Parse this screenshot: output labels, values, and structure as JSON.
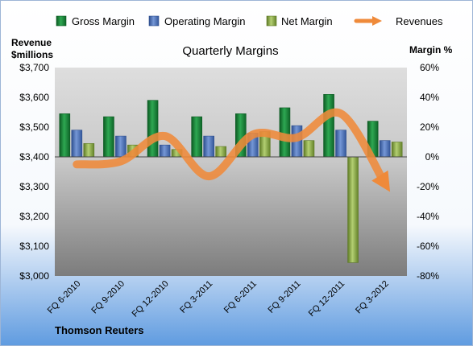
{
  "chart_data": {
    "type": "bar",
    "title": "Quarterly Margins",
    "company": "Thomson Reuters",
    "left_axis": {
      "label_line1": "Revenue",
      "label_line2": "$millions",
      "min": 3000,
      "max": 3700,
      "step": 100,
      "tick_labels": [
        "$3,000",
        "$3,100",
        "$3,200",
        "$3,300",
        "$3,400",
        "$3,500",
        "$3,600",
        "$3,700"
      ]
    },
    "right_axis": {
      "label": "Margin %",
      "min": -80,
      "max": 60,
      "step": 20,
      "tick_labels": [
        "-80%",
        "-60%",
        "-40%",
        "-20%",
        "0%",
        "20%",
        "40%",
        "60%"
      ]
    },
    "categories": [
      "FQ 6-2010",
      "FQ 9-2010",
      "FQ 12-2010",
      "FQ 3-2011",
      "FQ 6-2011",
      "FQ 9-2011",
      "FQ 12-2011",
      "FQ 3-2012"
    ],
    "series": [
      {
        "name": "Gross Margin",
        "kind": "bar",
        "axis": "right",
        "color": "#1e8a3a",
        "values": [
          29,
          27,
          38,
          27,
          29,
          33,
          42,
          24
        ]
      },
      {
        "name": "Operating Margin",
        "kind": "bar",
        "axis": "right",
        "color": "#4f72b8",
        "values": [
          18,
          14,
          8,
          14,
          16,
          21,
          18,
          11
        ]
      },
      {
        "name": "Net Margin",
        "kind": "bar",
        "axis": "right",
        "color": "#8fb04a",
        "values": [
          9,
          8,
          5,
          7,
          17,
          11,
          -71,
          10
        ]
      },
      {
        "name": "Revenues",
        "kind": "line",
        "axis": "left",
        "color": "#ef8a3a",
        "values": [
          3375,
          3385,
          3470,
          3335,
          3475,
          3465,
          3545,
          3310
        ]
      }
    ],
    "legend_position": "top",
    "grid": false
  }
}
